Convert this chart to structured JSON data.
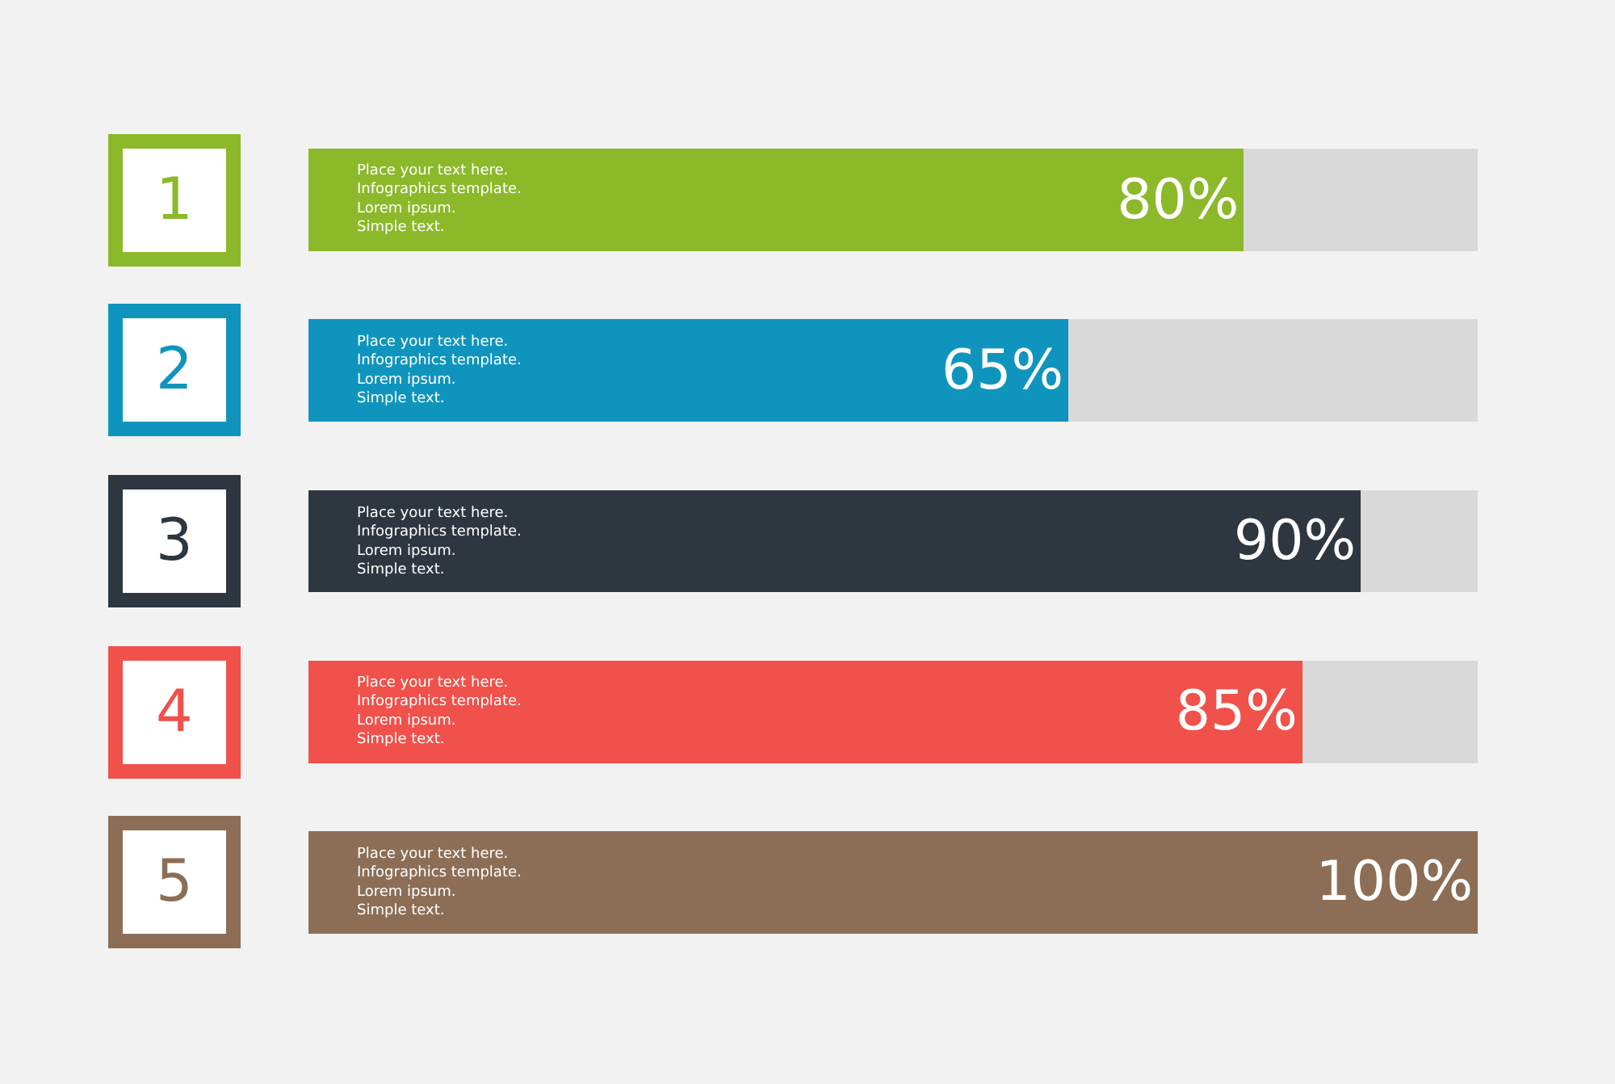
{
  "chart_data": {
    "type": "bar",
    "orientation": "horizontal",
    "stacked": true,
    "categories": [
      "1",
      "2",
      "3",
      "4",
      "5"
    ],
    "series": [
      {
        "colors": [
          "#8cb929",
          "#0f95bd",
          "#2e3740",
          "#f0514a",
          "#8c6e57"
        ],
        "values": [
          80,
          65,
          90,
          85,
          100
        ],
        "value_labels": [
          "80%",
          "65%",
          "90%",
          "85%",
          "100%"
        ]
      },
      {
        "color": "#d9d9d9",
        "values": [
          20,
          35,
          10,
          15,
          null
        ]
      }
    ],
    "xlim": [
      0,
      100
    ],
    "tick_labels": "y",
    "annotations": [
      "Place your text here.\nInfographics template.\nLorem ipsum.\nSimple text.",
      "Place your text here.\nInfographics template.\nLorem ipsum.\nSimple text.",
      "Place your text here.\nInfographics template.\nLorem ipsum.\nSimple text.",
      "Place your text here.\nInfographics template.\nLorem ipsum.\nSimple text.",
      "Place your text here.\nInfographics template.\nLorem ipsum.\nSimple text."
    ]
  }
}
